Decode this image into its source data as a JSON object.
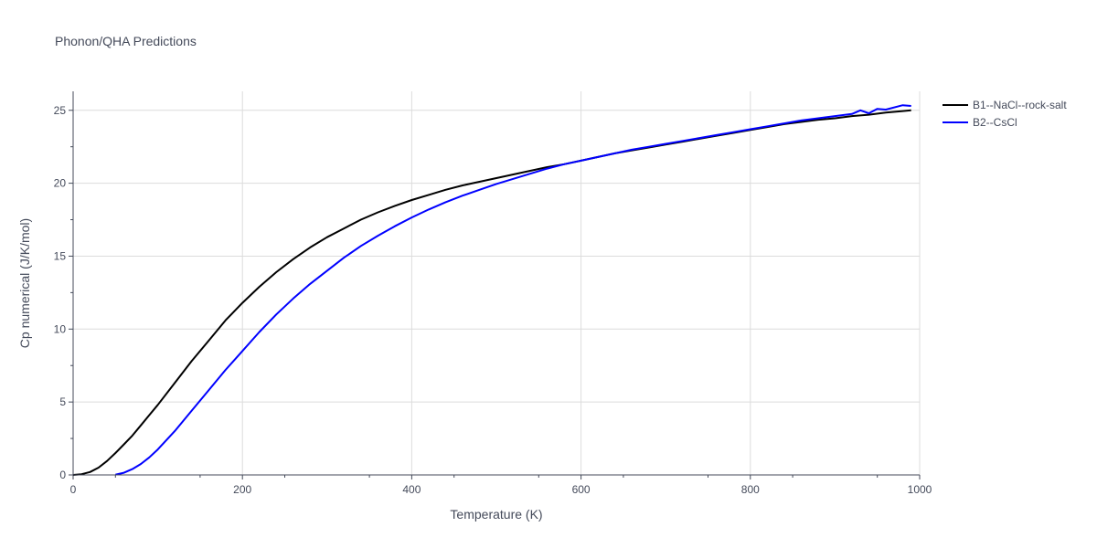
{
  "chart_data": {
    "type": "line",
    "title": "Phonon/QHA Predictions",
    "xlabel": "Temperature (K)",
    "ylabel": "Cp numerical (J/K/mol)",
    "xlim": [
      0,
      1000
    ],
    "ylim": [
      0,
      26.3
    ],
    "x_ticks": [
      0,
      200,
      400,
      600,
      800,
      1000
    ],
    "y_ticks": [
      0,
      5,
      10,
      15,
      20,
      25
    ],
    "grid": true,
    "legend": "top-right",
    "series": [
      {
        "name": "B1--NaCl--rock-salt",
        "color": "#000000",
        "points": [
          [
            0,
            0
          ],
          [
            10,
            0.05
          ],
          [
            20,
            0.2
          ],
          [
            30,
            0.5
          ],
          [
            40,
            0.95
          ],
          [
            50,
            1.5
          ],
          [
            60,
            2.1
          ],
          [
            70,
            2.7
          ],
          [
            80,
            3.4
          ],
          [
            90,
            4.1
          ],
          [
            100,
            4.8
          ],
          [
            120,
            6.3
          ],
          [
            140,
            7.8
          ],
          [
            160,
            9.2
          ],
          [
            180,
            10.6
          ],
          [
            200,
            11.8
          ],
          [
            220,
            12.9
          ],
          [
            240,
            13.9
          ],
          [
            260,
            14.8
          ],
          [
            280,
            15.6
          ],
          [
            300,
            16.3
          ],
          [
            320,
            16.9
          ],
          [
            340,
            17.5
          ],
          [
            360,
            18.0
          ],
          [
            380,
            18.45
          ],
          [
            400,
            18.85
          ],
          [
            420,
            19.2
          ],
          [
            440,
            19.55
          ],
          [
            460,
            19.85
          ],
          [
            480,
            20.1
          ],
          [
            500,
            20.35
          ],
          [
            520,
            20.6
          ],
          [
            540,
            20.85
          ],
          [
            560,
            21.1
          ],
          [
            580,
            21.3
          ],
          [
            600,
            21.55
          ],
          [
            620,
            21.8
          ],
          [
            640,
            22.05
          ],
          [
            660,
            22.25
          ],
          [
            680,
            22.45
          ],
          [
            700,
            22.65
          ],
          [
            720,
            22.85
          ],
          [
            740,
            23.05
          ],
          [
            760,
            23.25
          ],
          [
            780,
            23.45
          ],
          [
            800,
            23.65
          ],
          [
            820,
            23.85
          ],
          [
            840,
            24.05
          ],
          [
            860,
            24.2
          ],
          [
            880,
            24.35
          ],
          [
            900,
            24.45
          ],
          [
            920,
            24.6
          ],
          [
            940,
            24.7
          ],
          [
            960,
            24.85
          ],
          [
            980,
            24.95
          ],
          [
            990,
            25.0
          ]
        ]
      },
      {
        "name": "B2--CsCl",
        "color": "#0000ff",
        "points": [
          [
            50,
            0.02
          ],
          [
            60,
            0.15
          ],
          [
            70,
            0.4
          ],
          [
            80,
            0.75
          ],
          [
            90,
            1.2
          ],
          [
            100,
            1.75
          ],
          [
            120,
            3.0
          ],
          [
            140,
            4.4
          ],
          [
            160,
            5.8
          ],
          [
            180,
            7.2
          ],
          [
            200,
            8.5
          ],
          [
            220,
            9.8
          ],
          [
            240,
            11.0
          ],
          [
            260,
            12.1
          ],
          [
            280,
            13.1
          ],
          [
            300,
            14.0
          ],
          [
            320,
            14.9
          ],
          [
            340,
            15.7
          ],
          [
            360,
            16.4
          ],
          [
            380,
            17.05
          ],
          [
            400,
            17.65
          ],
          [
            420,
            18.2
          ],
          [
            440,
            18.7
          ],
          [
            460,
            19.15
          ],
          [
            480,
            19.55
          ],
          [
            500,
            19.95
          ],
          [
            520,
            20.3
          ],
          [
            540,
            20.65
          ],
          [
            560,
            21.0
          ],
          [
            580,
            21.3
          ],
          [
            600,
            21.55
          ],
          [
            620,
            21.8
          ],
          [
            640,
            22.05
          ],
          [
            660,
            22.3
          ],
          [
            680,
            22.5
          ],
          [
            700,
            22.7
          ],
          [
            720,
            22.9
          ],
          [
            740,
            23.1
          ],
          [
            760,
            23.3
          ],
          [
            780,
            23.5
          ],
          [
            800,
            23.7
          ],
          [
            820,
            23.9
          ],
          [
            840,
            24.1
          ],
          [
            860,
            24.3
          ],
          [
            880,
            24.45
          ],
          [
            900,
            24.6
          ],
          [
            920,
            24.75
          ],
          [
            930,
            25.0
          ],
          [
            940,
            24.8
          ],
          [
            950,
            25.1
          ],
          [
            960,
            25.05
          ],
          [
            980,
            25.35
          ],
          [
            990,
            25.3
          ]
        ]
      }
    ]
  }
}
